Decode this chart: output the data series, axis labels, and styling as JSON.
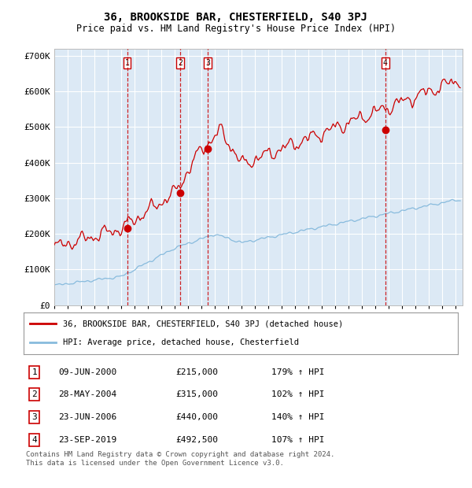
{
  "title": "36, BROOKSIDE BAR, CHESTERFIELD, S40 3PJ",
  "subtitle": "Price paid vs. HM Land Registry's House Price Index (HPI)",
  "background_color": "#dce9f5",
  "grid_color": "#ffffff",
  "red_line_color": "#cc0000",
  "blue_line_color": "#88bbdd",
  "sale_marker_color": "#cc0000",
  "dashed_line_color": "#cc0000",
  "ylim": [
    0,
    720000
  ],
  "yticks": [
    0,
    100000,
    200000,
    300000,
    400000,
    500000,
    600000,
    700000
  ],
  "ytick_labels": [
    "£0",
    "£100K",
    "£200K",
    "£300K",
    "£400K",
    "£500K",
    "£600K",
    "£700K"
  ],
  "xstart": 1995.0,
  "xend": 2025.5,
  "sales": [
    {
      "label": "1",
      "date": 2000.44,
      "price": 215000,
      "date_str": "09-JUN-2000",
      "price_str": "£215,000",
      "pct_str": "179% ↑ HPI"
    },
    {
      "label": "2",
      "date": 2004.41,
      "price": 315000,
      "date_str": "28-MAY-2004",
      "price_str": "£315,000",
      "pct_str": "102% ↑ HPI"
    },
    {
      "label": "3",
      "date": 2006.47,
      "price": 440000,
      "date_str": "23-JUN-2006",
      "price_str": "£440,000",
      "pct_str": "140% ↑ HPI"
    },
    {
      "label": "4",
      "date": 2019.73,
      "price": 492500,
      "date_str": "23-SEP-2019",
      "price_str": "£492,500",
      "pct_str": "107% ↑ HPI"
    }
  ],
  "legend_line1": "36, BROOKSIDE BAR, CHESTERFIELD, S40 3PJ (detached house)",
  "legend_line2": "HPI: Average price, detached house, Chesterfield",
  "footer": "Contains HM Land Registry data © Crown copyright and database right 2024.\nThis data is licensed under the Open Government Licence v3.0."
}
